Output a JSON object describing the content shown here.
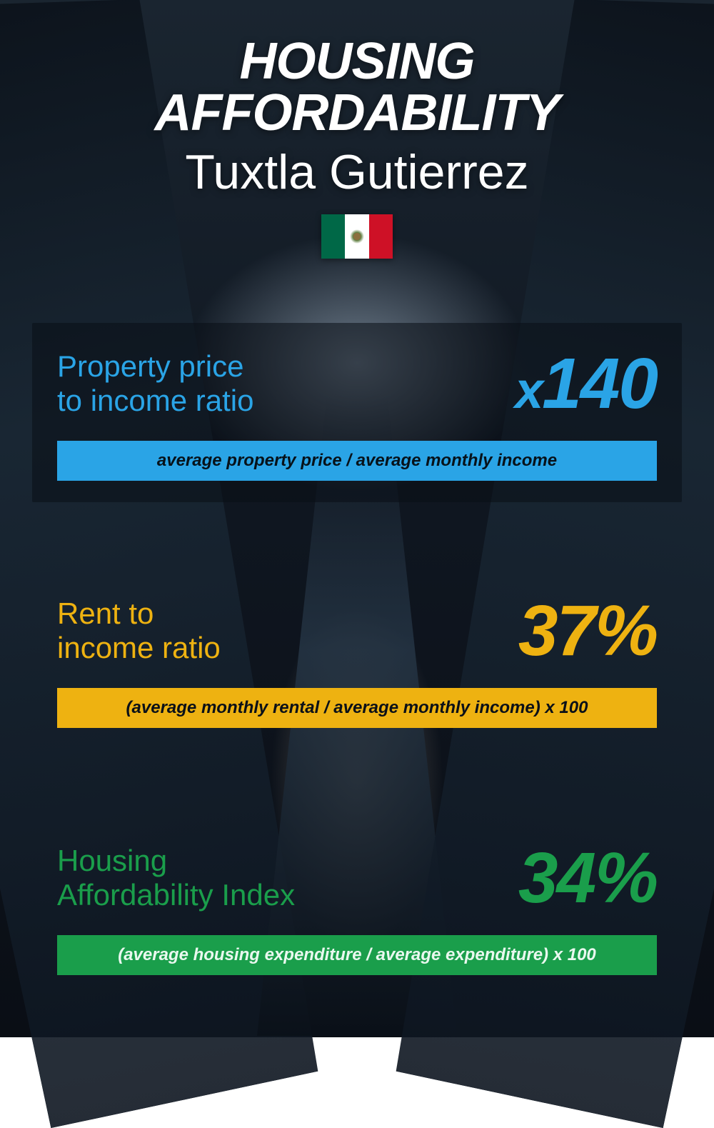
{
  "header": {
    "title": "HOUSING AFFORDABILITY",
    "city": "Tuxtla Gutierrez",
    "flag": {
      "left_color": "#006847",
      "center_color": "#ffffff",
      "right_color": "#ce1126"
    }
  },
  "metrics": [
    {
      "label": "Property price\nto income ratio",
      "value_prefix": "x",
      "value": "140",
      "formula": "average property price / average monthly income",
      "color": "#2aa4e6",
      "has_panel": true
    },
    {
      "label": "Rent to\nincome ratio",
      "value_prefix": "",
      "value": "37%",
      "formula": "(average monthly rental / average monthly income) x 100",
      "color": "#eeb211",
      "has_panel": false
    },
    {
      "label": "Housing\nAffordability Index",
      "value_prefix": "",
      "value": "34%",
      "formula": "(average housing expenditure / average expenditure) x 100",
      "color": "#1a9e4b",
      "has_panel": false
    }
  ],
  "background": {
    "gradient_top": "#1a2530",
    "gradient_bottom": "#0a0e15",
    "building_tone": "#0f1620"
  },
  "typography": {
    "title_fontsize": 72,
    "subtitle_fontsize": 68,
    "label_fontsize": 42,
    "value_fontsize": 100,
    "formula_fontsize": 24
  }
}
